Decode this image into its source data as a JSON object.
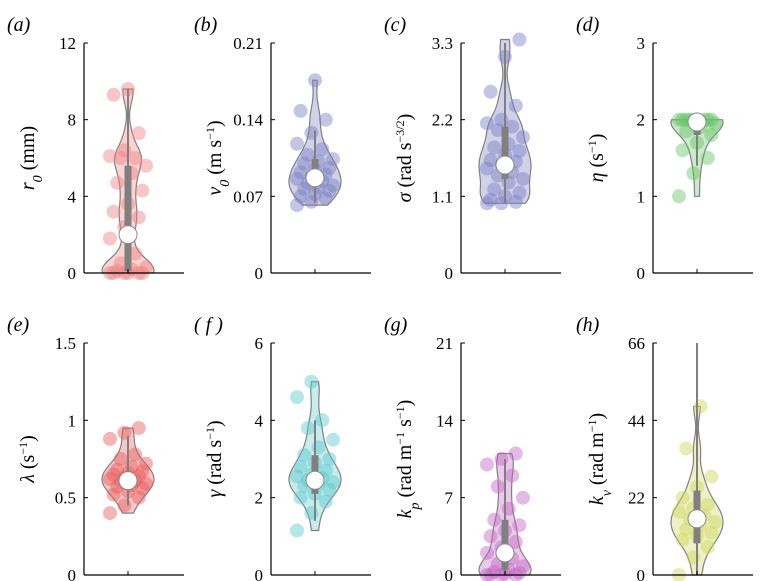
{
  "chart_data": [
    {
      "type": "violin",
      "panel": "(a)",
      "ylabel": "r0 (mm)",
      "ylabel_parts": {
        "sym": "r",
        "sub": "0",
        "unit": " (mm)"
      },
      "yticks": [
        0,
        4,
        8,
        12
      ],
      "ylim": [
        0,
        12
      ],
      "color": "#f08080",
      "median": 2.0,
      "q1": 0.1,
      "q3": 5.6,
      "whisker": [
        0,
        9.6
      ],
      "points": [
        0,
        0,
        0,
        0,
        0,
        0,
        0.1,
        0.2,
        0.3,
        0.5,
        1.0,
        1.8,
        2.4,
        2.9,
        3.2,
        3.6,
        4.3,
        4.7,
        5.2,
        5.6,
        6.0,
        6.0,
        6.1,
        6.4,
        7.3,
        9.3,
        9.6
      ]
    },
    {
      "type": "violin",
      "panel": "(b)",
      "ylabel": "v0 (m s−1)",
      "ylabel_parts": {
        "sym": "v",
        "sub": "0",
        "unit": " (m s",
        "sup": "−1",
        "unit_end": ")"
      },
      "yticks": [
        0,
        0.07,
        0.14,
        0.21
      ],
      "ylim": [
        0,
        0.21
      ],
      "color": "#7b7fc4",
      "median": 0.087,
      "q1": 0.079,
      "q3": 0.104,
      "whisker": [
        0.064,
        0.13
      ],
      "points": [
        0.062,
        0.065,
        0.068,
        0.07,
        0.072,
        0.075,
        0.077,
        0.078,
        0.08,
        0.082,
        0.084,
        0.086,
        0.088,
        0.09,
        0.092,
        0.094,
        0.096,
        0.1,
        0.102,
        0.104,
        0.108,
        0.113,
        0.118,
        0.128,
        0.14,
        0.148,
        0.176
      ]
    },
    {
      "type": "violin",
      "panel": "(c)",
      "ylabel": "σ (rad s−3/2)",
      "ylabel_parts": {
        "sym": "σ",
        "unit": " (rad s",
        "sup": "−3/2",
        "unit_end": ")"
      },
      "yticks": [
        0,
        1.1,
        2.2,
        3.3
      ],
      "ylim": [
        0,
        3.3
      ],
      "color": "#7b7fc4",
      "median": 1.55,
      "q1": 1.35,
      "q3": 2.1,
      "whisker": [
        1.0,
        3.3
      ],
      "points": [
        1.0,
        1.0,
        1.02,
        1.05,
        1.1,
        1.15,
        1.2,
        1.3,
        1.35,
        1.4,
        1.45,
        1.5,
        1.55,
        1.6,
        1.62,
        1.7,
        1.75,
        1.8,
        1.85,
        1.95,
        2.05,
        2.1,
        2.15,
        2.2,
        2.4,
        2.6,
        3.1,
        3.35
      ]
    },
    {
      "type": "violin",
      "panel": "(d)",
      "ylabel": "η (s−1)",
      "ylabel_parts": {
        "sym": "η",
        "unit": " (s",
        "sup": "−1",
        "unit_end": ")"
      },
      "yticks": [
        0,
        1,
        2,
        3
      ],
      "ylim": [
        0,
        3
      ],
      "color": "#66c466",
      "median": 1.97,
      "q1": 1.8,
      "q3": 2.0,
      "whisker": [
        1.4,
        2.0
      ],
      "points": [
        1.0,
        1.3,
        1.5,
        1.6,
        1.7,
        1.8,
        1.85,
        1.9,
        1.95,
        2.0,
        2.0,
        2.0,
        2.0,
        2.0,
        2.0,
        2.0,
        2.0,
        2.0
      ]
    },
    {
      "type": "violin",
      "panel": "(e)",
      "ylabel": "λ (s−1)",
      "ylabel_parts": {
        "sym": "λ",
        "unit": " (s",
        "sup": "−1",
        "unit_end": ")"
      },
      "yticks": [
        0,
        0.5,
        1.0,
        1.5
      ],
      "ylim": [
        0,
        1.5
      ],
      "color": "#e85c5c",
      "median": 0.61,
      "q1": 0.56,
      "q3": 0.67,
      "whisker": [
        0.45,
        0.9
      ],
      "points": [
        0.4,
        0.45,
        0.5,
        0.52,
        0.54,
        0.56,
        0.57,
        0.58,
        0.59,
        0.6,
        0.61,
        0.62,
        0.63,
        0.64,
        0.65,
        0.66,
        0.67,
        0.68,
        0.7,
        0.72,
        0.75,
        0.78,
        0.88,
        0.92,
        0.95
      ]
    },
    {
      "type": "violin",
      "panel": "( f )",
      "ylabel": "γ (rad s−1)",
      "ylabel_parts": {
        "sym": "γ",
        "unit": " (rad s",
        "sup": "−1",
        "unit_end": ")"
      },
      "yticks": [
        0,
        2,
        4,
        6
      ],
      "ylim": [
        0,
        6
      ],
      "color": "#5cc8cc",
      "median": 2.45,
      "q1": 2.1,
      "q3": 3.1,
      "whisker": [
        1.4,
        4.0
      ],
      "points": [
        1.15,
        1.6,
        1.9,
        2.0,
        2.1,
        2.2,
        2.3,
        2.35,
        2.4,
        2.45,
        2.5,
        2.55,
        2.6,
        2.7,
        2.8,
        2.9,
        3.0,
        3.1,
        3.3,
        3.5,
        3.8,
        4.0,
        4.6,
        5.0
      ]
    },
    {
      "type": "violin",
      "panel": "(g)",
      "ylabel": "kp (rad m−1 s−1)",
      "ylabel_parts": {
        "sym": "k",
        "sub": "p",
        "unit": " (rad m",
        "sup": "−1",
        "unit_mid": " s",
        "sup2": "−1",
        "unit_end": ")"
      },
      "yticks": [
        0,
        7,
        14,
        21
      ],
      "ylim": [
        0,
        21
      ],
      "color": "#c466c4",
      "median": 2.0,
      "q1": 0.5,
      "q3": 5.0,
      "whisker": [
        0,
        10.5
      ],
      "points": [
        0,
        0,
        0,
        0,
        0.1,
        0.2,
        0.3,
        0.5,
        0.8,
        1.0,
        1.5,
        2.0,
        2.5,
        3.0,
        3.5,
        4.0,
        4.5,
        5.0,
        6.0,
        7.0,
        8.0,
        9.0,
        10.0,
        10.5,
        11.0
      ]
    },
    {
      "type": "violin",
      "panel": "(h)",
      "ylabel": "kv (rad m−1)",
      "ylabel_parts": {
        "sym": "k",
        "sub": "v",
        "unit": " (rad m",
        "sup": "−1",
        "unit_end": ")"
      },
      "yticks": [
        0,
        22,
        44,
        66
      ],
      "ylim": [
        0,
        66
      ],
      "color": "#cfd65a",
      "median": 16.0,
      "q1": 9.0,
      "q3": 24.0,
      "whisker": [
        0,
        66
      ],
      "points": [
        0,
        5,
        8,
        10,
        11,
        12,
        13,
        14,
        15,
        16,
        17,
        18,
        19,
        20,
        22,
        25,
        28,
        36,
        48
      ]
    }
  ]
}
